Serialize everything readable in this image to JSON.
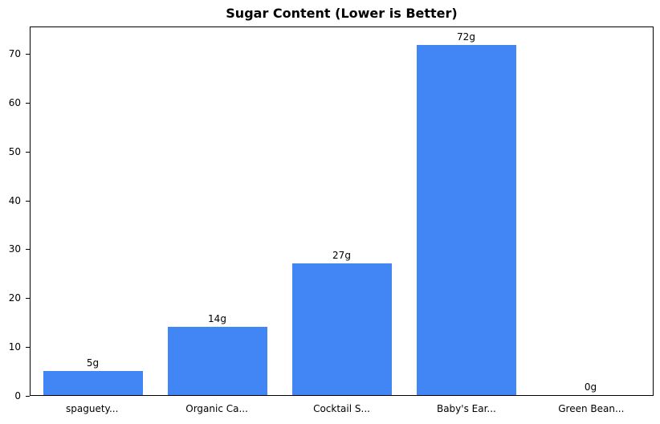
{
  "chart_data": {
    "type": "bar",
    "title": "Sugar Content (Lower is Better)",
    "categories": [
      "spaguety...",
      "Organic Ca...",
      "Cocktail S...",
      "Baby's Ear...",
      "Green Bean..."
    ],
    "values": [
      5,
      14,
      27,
      72,
      0
    ],
    "value_labels": [
      "5g",
      "14g",
      "27g",
      "72g",
      "0g"
    ],
    "xlabel": "",
    "ylabel": "",
    "ylim": [
      0,
      75.6
    ],
    "yticks": [
      0,
      10,
      20,
      30,
      40,
      50,
      60,
      70
    ],
    "bar_color": "#4285f4",
    "grid": false,
    "legend_position": "none",
    "background_color": "#ffffff"
  }
}
